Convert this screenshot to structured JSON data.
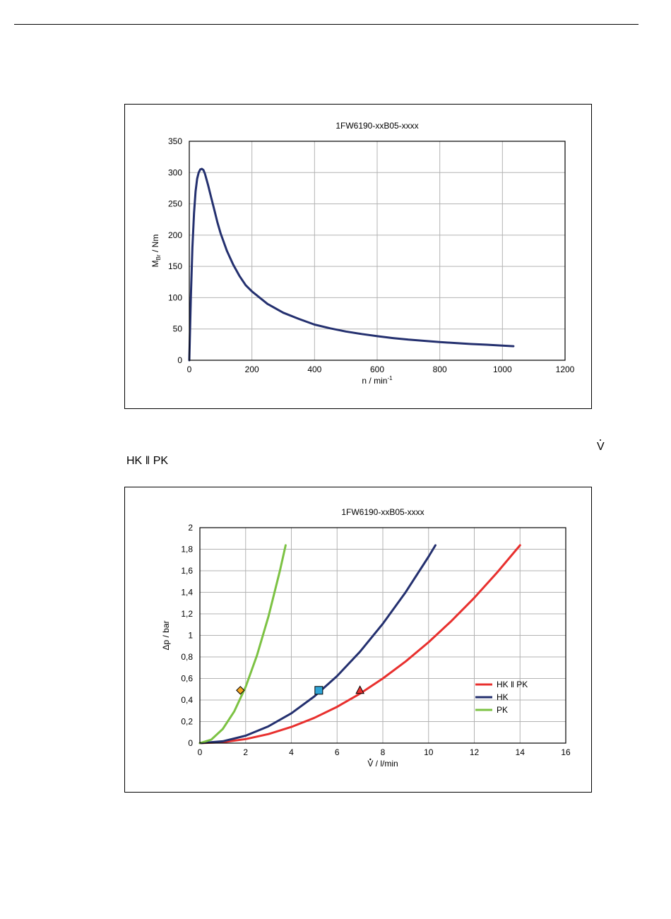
{
  "side_notes": {
    "vdot_symbol": "V",
    "hk_pk_heading": "HK ‖ PK"
  },
  "chart_data": [
    {
      "type": "line",
      "title": "1FW6190-xxB05-xxxx",
      "xlabel": "n / min-1",
      "xlabel_parts": {
        "main": "n / min",
        "sup": "-1"
      },
      "ylabel": "MBr / Nm",
      "ylabel_parts": {
        "main": "M",
        "sub": "Br",
        "rest": " / Nm"
      },
      "xlim": [
        0,
        1200
      ],
      "ylim": [
        0,
        350
      ],
      "xticks": [
        0,
        200,
        400,
        600,
        800,
        1000,
        1200
      ],
      "yticks": [
        0,
        50,
        100,
        150,
        200,
        250,
        300,
        350
      ],
      "x_tick_labels": [
        "0",
        "200",
        "400",
        "600",
        "800",
        "1000",
        "1200"
      ],
      "y_tick_labels": [
        "0",
        "50",
        "100",
        "150",
        "200",
        "250",
        "300",
        "350"
      ],
      "grid": true,
      "series": [
        {
          "color": "#24306f",
          "x": [
            0,
            5,
            10,
            15,
            20,
            25,
            30,
            35,
            40,
            45,
            50,
            60,
            70,
            80,
            90,
            100,
            120,
            140,
            160,
            180,
            200,
            250,
            300,
            350,
            400,
            450,
            500,
            550,
            600,
            650,
            700,
            750,
            800,
            850,
            900,
            950,
            1000,
            1035
          ],
          "y": [
            0,
            100,
            180,
            235,
            270,
            290,
            300,
            305,
            306,
            304,
            298,
            280,
            260,
            240,
            220,
            203,
            175,
            153,
            135,
            120,
            110,
            90,
            76,
            66,
            57,
            51,
            46,
            42,
            38.5,
            35.5,
            33,
            31,
            29,
            27.5,
            26,
            24.8,
            23.5,
            22.5
          ]
        }
      ]
    },
    {
      "type": "line",
      "title": "1FW6190-xxB05-xxxx",
      "xlabel": "V / l/min",
      "xlabel_parts": {
        "dotted": "V",
        "rest": " / l/min"
      },
      "ylabel": "Δp / bar",
      "xlim": [
        0,
        16
      ],
      "ylim": [
        0,
        2
      ],
      "xticks": [
        0,
        2,
        4,
        6,
        8,
        10,
        12,
        14,
        16
      ],
      "yticks": [
        0,
        0.2,
        0.4,
        0.6,
        0.8,
        1,
        1.2,
        1.4,
        1.6,
        1.8,
        2
      ],
      "x_tick_labels": [
        "0",
        "2",
        "4",
        "6",
        "8",
        "10",
        "12",
        "14",
        "16"
      ],
      "y_tick_labels": [
        "0",
        "0,2",
        "0,4",
        "0,6",
        "0,8",
        "1",
        "1,2",
        "1,4",
        "1,6",
        "1,8",
        "2"
      ],
      "grid": true,
      "legend_position": "right",
      "series": [
        {
          "name": "HK ‖ PK",
          "color": "#e8302e",
          "x": [
            0,
            1,
            2,
            3,
            4,
            5,
            6,
            7,
            8,
            9,
            10,
            11,
            12,
            13,
            14
          ],
          "y": [
            0,
            0.0094,
            0.0375,
            0.084,
            0.15,
            0.234,
            0.337,
            0.459,
            0.6,
            0.759,
            0.937,
            1.134,
            1.349,
            1.584,
            1.837
          ],
          "marker": {
            "shape": "triangle",
            "x": 7,
            "y": 0.49,
            "fill": "#e8302e"
          }
        },
        {
          "name": "HK",
          "color": "#24306f",
          "x": [
            0,
            1,
            2,
            3,
            4,
            5,
            6,
            7,
            8,
            9,
            10,
            10.3
          ],
          "y": [
            0,
            0.0173,
            0.069,
            0.156,
            0.277,
            0.433,
            0.623,
            0.848,
            1.108,
            1.402,
            1.731,
            1.837
          ],
          "marker": {
            "shape": "square",
            "x": 5.2,
            "y": 0.49,
            "fill": "#2fa4d6"
          }
        },
        {
          "name": "PK",
          "color": "#7cc243",
          "x": [
            0,
            0.5,
            1,
            1.5,
            2,
            2.5,
            3,
            3.5,
            3.75
          ],
          "y": [
            0,
            0.033,
            0.131,
            0.294,
            0.522,
            0.816,
            1.176,
            1.6,
            1.837
          ],
          "marker": {
            "shape": "diamond",
            "x": 1.77,
            "y": 0.49,
            "fill": "#f5a623"
          }
        }
      ]
    }
  ]
}
